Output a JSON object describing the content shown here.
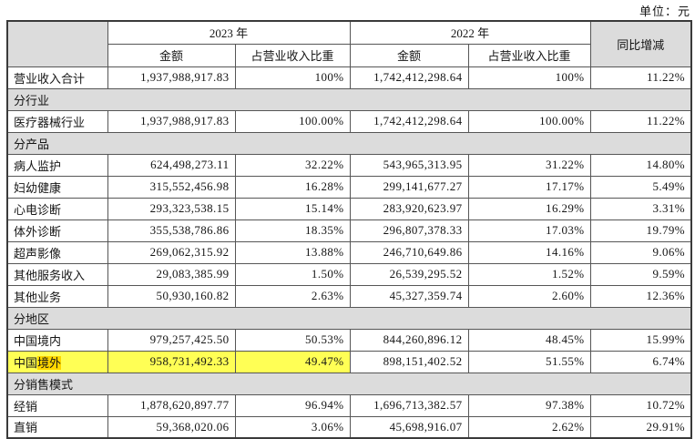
{
  "unit_label": "单位：元",
  "header": {
    "year_2023": "2023 年",
    "year_2022": "2022 年",
    "amount": "金额",
    "pct_of_revenue": "占营业收入比重",
    "yoy": "同比增减"
  },
  "colors": {
    "section_bg": "#dcdcdc",
    "header_gray_bg": "#dcdcdc",
    "border": "#565656",
    "highlight_row_bg": "#ffff55",
    "highlight_term_bg": "#ffd700"
  },
  "rows": [
    {
      "type": "data",
      "label": "营业收入合计",
      "a23": "1,937,988,917.83",
      "p23": "100%",
      "a22": "1,742,412,298.64",
      "p22": "100%",
      "yoy": "11.22%"
    },
    {
      "type": "section",
      "label": "分行业"
    },
    {
      "type": "data",
      "label": "医疗器械行业",
      "a23": "1,937,988,917.83",
      "p23": "100.00%",
      "a22": "1,742,412,298.64",
      "p22": "100.00%",
      "yoy": "11.22%"
    },
    {
      "type": "section",
      "label": "分产品"
    },
    {
      "type": "data",
      "label": "病人监护",
      "a23": "624,498,273.11",
      "p23": "32.22%",
      "a22": "543,965,313.95",
      "p22": "31.22%",
      "yoy": "14.80%"
    },
    {
      "type": "data",
      "label": "妇幼健康",
      "a23": "315,552,456.98",
      "p23": "16.28%",
      "a22": "299,141,677.27",
      "p22": "17.17%",
      "yoy": "5.49%"
    },
    {
      "type": "data",
      "label": "心电诊断",
      "a23": "293,323,538.15",
      "p23": "15.14%",
      "a22": "283,920,623.97",
      "p22": "16.29%",
      "yoy": "3.31%"
    },
    {
      "type": "data",
      "label": "体外诊断",
      "a23": "355,538,786.86",
      "p23": "18.35%",
      "a22": "296,807,378.33",
      "p22": "17.03%",
      "yoy": "19.79%"
    },
    {
      "type": "data",
      "label": "超声影像",
      "a23": "269,062,315.92",
      "p23": "13.88%",
      "a22": "246,710,649.86",
      "p22": "14.16%",
      "yoy": "9.06%"
    },
    {
      "type": "data",
      "label": "其他服务收入",
      "a23": "29,083,385.99",
      "p23": "1.50%",
      "a22": "26,539,295.52",
      "p22": "1.52%",
      "yoy": "9.59%"
    },
    {
      "type": "data",
      "label": "其他业务",
      "a23": "50,930,160.82",
      "p23": "2.63%",
      "a22": "45,327,359.74",
      "p22": "2.60%",
      "yoy": "12.36%"
    },
    {
      "type": "section",
      "label": "分地区"
    },
    {
      "type": "data",
      "label": "中国境内",
      "a23": "979,257,425.50",
      "p23": "50.53%",
      "a22": "844,260,896.12",
      "p22": "48.45%",
      "yoy": "15.99%"
    },
    {
      "type": "data",
      "label": "中国境外",
      "highlight": true,
      "label_prefix": "中国",
      "label_term": "境外",
      "a23": "958,731,492.33",
      "p23": "49.47%",
      "a22": "898,151,402.52",
      "p22": "51.55%",
      "yoy": "6.74%"
    },
    {
      "type": "section",
      "label": "分销售模式"
    },
    {
      "type": "data",
      "label": "经销",
      "a23": "1,878,620,897.77",
      "p23": "96.94%",
      "a22": "1,696,713,382.57",
      "p22": "97.38%",
      "yoy": "10.72%"
    },
    {
      "type": "data",
      "label": "直销",
      "a23": "59,368,020.06",
      "p23": "3.06%",
      "a22": "45,698,916.07",
      "p22": "2.62%",
      "yoy": "29.91%"
    }
  ]
}
